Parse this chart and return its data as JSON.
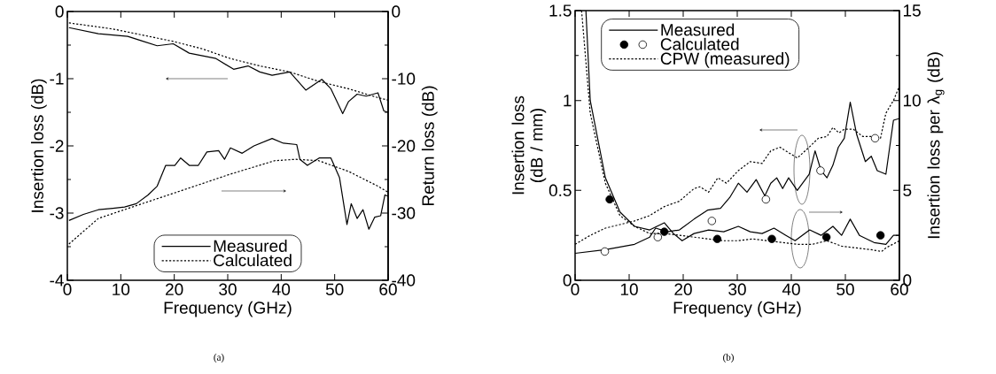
{
  "chart_data": [
    {
      "type": "line",
      "xlabel": "Frequency (GHz)",
      "ylabel": "Insertion loss (dB)",
      "y2label": "Return loss (dB)",
      "annotations": [
        "(a)"
      ],
      "xlim": [
        0,
        60
      ],
      "xticks": [
        0,
        10,
        20,
        30,
        40,
        50,
        60
      ],
      "ylim": [
        -4,
        0
      ],
      "yticks": [
        -4,
        -3,
        -2,
        -1,
        0
      ],
      "y2lim": [
        -40,
        0
      ],
      "y2ticks": [
        -40,
        -30,
        -20,
        -10,
        0
      ],
      "legend": "bottom",
      "series": [
        {
          "name": "Measured",
          "color": "#000000",
          "line_style": "solid",
          "x": [
            0.3,
            5.8,
            11.3,
            14,
            16.8,
            19.8,
            22.8,
            27.8,
            31.1,
            33.8,
            36,
            38.3,
            41.6,
            44.6,
            47.6,
            49.3,
            51.5,
            52.6,
            54.2,
            55.9,
            58.1,
            59.2,
            60
          ],
          "values": [
            -0.24,
            -0.33,
            -0.37,
            -0.44,
            -0.51,
            -0.48,
            -0.62,
            -0.7,
            -0.86,
            -0.81,
            -0.9,
            -0.95,
            -0.9,
            -1.17,
            -1.01,
            -1.15,
            -1.52,
            -1.34,
            -1.23,
            -1.26,
            -1.21,
            -1.48,
            -1.5
          ]
        },
        {
          "name": "Calculated",
          "color": "#000000",
          "line_style": "dashed",
          "x": [
            0.3,
            8.5,
            19.5,
            25,
            30.5,
            36,
            41.6,
            47,
            52.6,
            58,
            60
          ],
          "values": [
            -0.17,
            -0.26,
            -0.44,
            -0.55,
            -0.7,
            -0.81,
            -0.9,
            -1.04,
            -1.15,
            -1.28,
            -1.32
          ]
        },
        {
          "color": "#000000",
          "line_style": "solid",
          "axis": "y2",
          "x": [
            0.3,
            3,
            5.8,
            8.5,
            10.7,
            12.9,
            15.1,
            16.8,
            18.4,
            20.1,
            21.2,
            22.8,
            24.5,
            26.1,
            28.3,
            29.4,
            30.5,
            32.7,
            34.9,
            38.3,
            40.4,
            42.9,
            43.5,
            44.9,
            47.1,
            49.3,
            50.9,
            52.3,
            53.1,
            54.2,
            55.3,
            56.4,
            57.5,
            58.6,
            59.4,
            60
          ],
          "values": [
            -31.1,
            -30.2,
            -29.5,
            -29.3,
            -29.1,
            -28.6,
            -27.3,
            -26,
            -22.9,
            -22.9,
            -21.8,
            -22.9,
            -22.9,
            -20.9,
            -20.7,
            -22,
            -20.3,
            -21.1,
            -20,
            -18.9,
            -19.6,
            -19.8,
            -22,
            -22.9,
            -21.8,
            -21.8,
            -24.7,
            -31.7,
            -28.6,
            -30.8,
            -29.5,
            -32.4,
            -30.6,
            -30.4,
            -27.3,
            -27.5
          ]
        },
        {
          "color": "#000000",
          "line_style": "dashed",
          "axis": "y2",
          "x": [
            0.3,
            5.8,
            14,
            22.3,
            30.5,
            38.8,
            42.7,
            47,
            52.6,
            58.1,
            60
          ],
          "values": [
            -34.6,
            -30.8,
            -28.6,
            -26.4,
            -24.2,
            -22.2,
            -22,
            -22.2,
            -23.8,
            -26,
            -26.9
          ]
        }
      ]
    },
    {
      "type": "line",
      "xlabel": "Frequency (GHz)",
      "ylabel": "Insertion loss (dB / mm)",
      "y2label": "Insertion loss per λ$_{g}$ (dB)",
      "annotations": [
        "(b)"
      ],
      "xlim": [
        0,
        60
      ],
      "xticks": [
        0,
        10,
        20,
        30,
        40,
        50,
        60
      ],
      "ylim": [
        0,
        1.5
      ],
      "yticks": [
        0,
        0.5,
        1,
        1.5
      ],
      "y2lim": [
        0,
        15
      ],
      "y2ticks": [
        0,
        5,
        10,
        15
      ],
      "legend": "top left",
      "series": [
        {
          "name": "Measured",
          "color": "#000000",
          "line_style": "solid",
          "x": [
            0,
            5.6,
            11,
            13.8,
            14.9,
            17.1,
            19.3,
            22,
            24.5,
            26.9,
            28.6,
            30.2,
            31.8,
            33.5,
            35.1,
            36.2,
            37.3,
            38.4,
            39.5,
            41.1,
            43.3,
            44.4,
            45.5,
            46.6,
            47.7,
            48.7,
            49.8,
            50.9,
            52.1,
            53.7,
            54.8,
            55.9,
            57.5,
            58.9,
            60
          ],
          "values": [
            0.15,
            0.17,
            0.2,
            0.24,
            0.29,
            0.27,
            0.28,
            0.34,
            0.39,
            0.4,
            0.46,
            0.54,
            0.49,
            0.56,
            0.47,
            0.54,
            0.57,
            0.51,
            0.57,
            0.5,
            0.59,
            0.72,
            0.61,
            0.57,
            0.64,
            0.74,
            0.79,
            0.99,
            0.81,
            0.66,
            0.69,
            0.61,
            0.59,
            0.89,
            0.9
          ]
        },
        {
          "name": "Calculated",
          "type": "scatter",
          "marker": "circle",
          "color": "#ffffff",
          "x": [
            5.5,
            15.3,
            25.3,
            35.3,
            45.4,
            55.5
          ],
          "values": [
            0.16,
            0.24,
            0.33,
            0.45,
            0.61,
            0.79
          ]
        },
        {
          "name": "CPW (measured)",
          "color": "#000000",
          "line_style": "dashed",
          "x": [
            0,
            2.8,
            5.6,
            8.3,
            11,
            13.8,
            16.5,
            19.3,
            22,
            23.1,
            24.7,
            26.4,
            28,
            30.2,
            32.4,
            34.6,
            36.2,
            37.9,
            39.5,
            41.1,
            43.3,
            45,
            46.6,
            47.7,
            48.8,
            49.8,
            51.5,
            53.2,
            55.4,
            56.5,
            57.5,
            58.9,
            60
          ],
          "values": [
            0.2,
            0.25,
            0.29,
            0.31,
            0.33,
            0.36,
            0.41,
            0.44,
            0.51,
            0.52,
            0.49,
            0.57,
            0.54,
            0.61,
            0.66,
            0.65,
            0.72,
            0.74,
            0.71,
            0.68,
            0.74,
            0.79,
            0.8,
            0.85,
            0.82,
            0.84,
            0.84,
            0.8,
            0.8,
            0.79,
            0.93,
            1,
            1.08
          ]
        },
        {
          "color": "#000000",
          "line_style": "solid",
          "axis": "y2",
          "x": [
            2,
            2.8,
            5.6,
            8.3,
            11,
            13.8,
            16.5,
            18.2,
            19.8,
            22,
            24.7,
            27.5,
            30.2,
            32.4,
            34.6,
            36.8,
            39,
            40.7,
            43.4,
            45.5,
            47.7,
            49.3,
            50.9,
            52.6,
            55.3,
            57.5,
            58.9,
            60
          ],
          "values": [
            15,
            10,
            5.7,
            3.8,
            3,
            2.8,
            3.2,
            2.6,
            2.2,
            2.6,
            2.8,
            2.7,
            3,
            2.7,
            2.6,
            2.9,
            2.5,
            2.2,
            2.8,
            2.5,
            3,
            2.5,
            3.4,
            2.5,
            2.1,
            2,
            2.5,
            2.5
          ]
        },
        {
          "type": "scatter",
          "marker": "circle",
          "color": "#000000",
          "axis": "y2",
          "x": [
            6.4,
            16.5,
            26.3,
            36.4,
            46.5,
            56.5
          ],
          "values": [
            4.5,
            2.7,
            2.3,
            2.3,
            2.4,
            2.5
          ]
        },
        {
          "color": "#000000",
          "line_style": "dashed",
          "axis": "y2",
          "x": [
            1.2,
            2.8,
            5.6,
            8.3,
            11,
            13.8,
            16.5,
            19.3,
            22,
            24.7,
            27.5,
            30.2,
            32.9,
            35.7,
            38.4,
            41.1,
            43.9,
            46.6,
            49.3,
            52.1,
            54.8,
            56.7,
            57.5,
            60
          ],
          "values": [
            15,
            9.3,
            5.4,
            3.6,
            3,
            2.6,
            2.6,
            2.5,
            2.4,
            2.3,
            2.2,
            2.2,
            2.3,
            2.2,
            2.1,
            2,
            2,
            2.2,
            1.9,
            1.8,
            1.7,
            1.6,
            1.8,
            2.2
          ]
        }
      ]
    }
  ]
}
